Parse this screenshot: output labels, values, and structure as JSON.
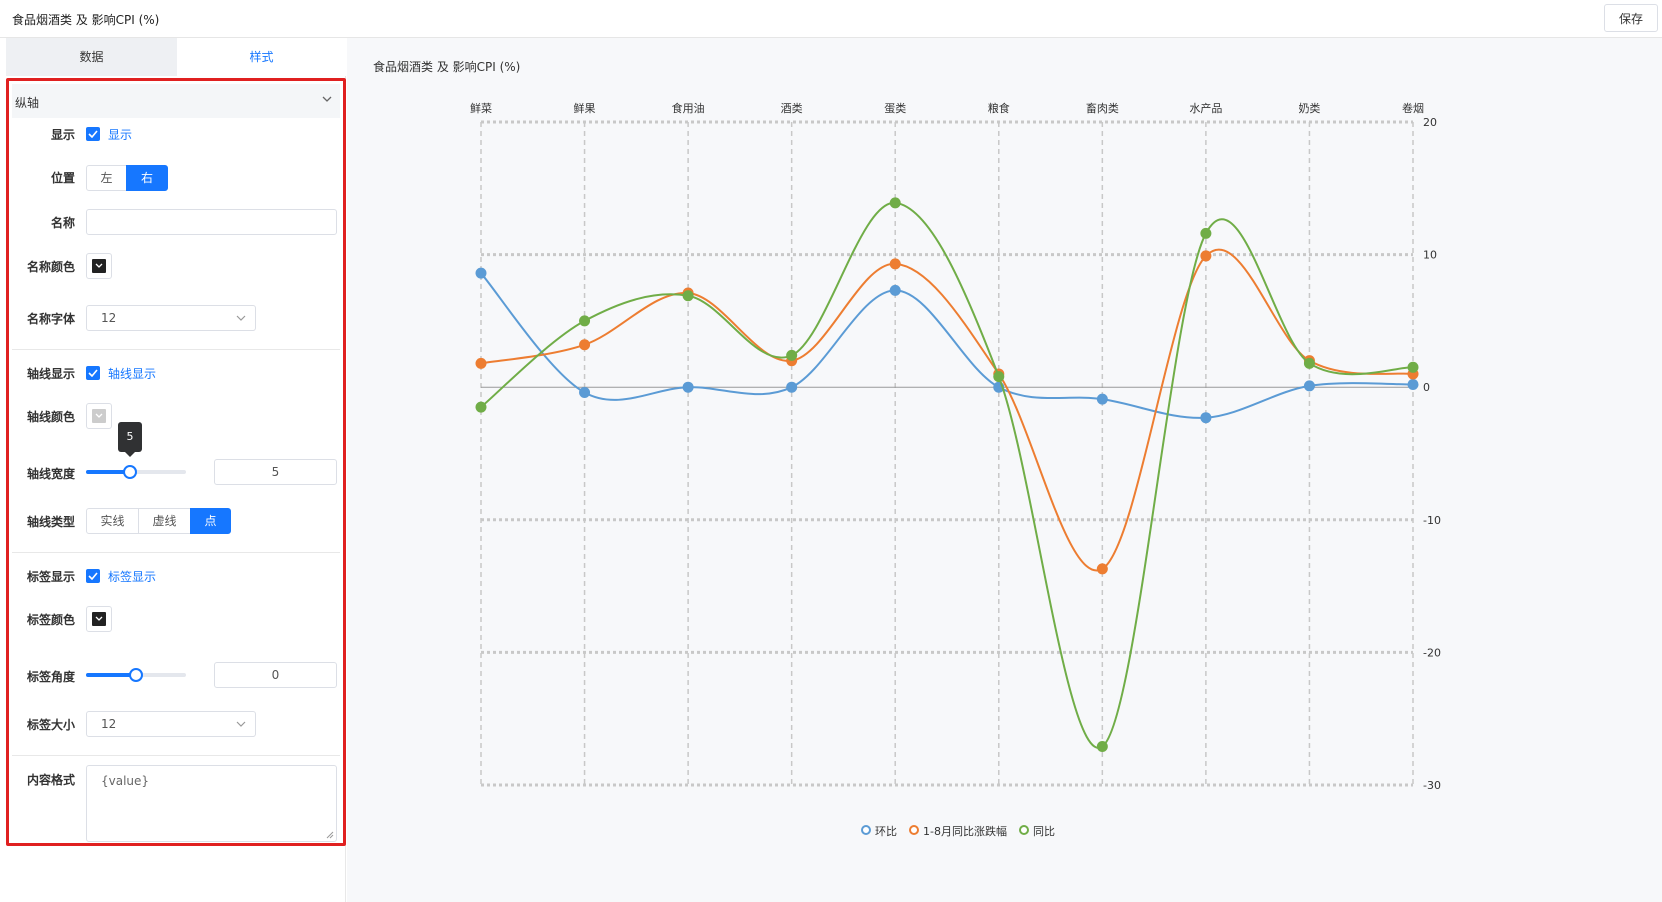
{
  "page": {
    "title": "食品烟酒类 及 影响CPI (%)",
    "save_label": "保存"
  },
  "tabs": [
    {
      "label": "数据"
    },
    {
      "label": "样式"
    }
  ],
  "section": {
    "title": "纵轴",
    "show": {
      "label": "显示",
      "checkbox_text": "显示",
      "checked": true
    },
    "position": {
      "label": "位置",
      "options": [
        "左",
        "右"
      ],
      "selected": "右"
    },
    "name": {
      "label": "名称",
      "value": ""
    },
    "name_color": {
      "label": "名称颜色",
      "color": "#222222"
    },
    "name_font": {
      "label": "名称字体",
      "value": "12"
    },
    "axis_show": {
      "label": "轴线显示",
      "checkbox_text": "轴线显示",
      "checked": true
    },
    "axis_color": {
      "label": "轴线颜色",
      "color": "#cccccc"
    },
    "axis_width": {
      "label": "轴线宽度",
      "value": "5",
      "tooltip": "5",
      "fraction": 0.45
    },
    "axis_type": {
      "label": "轴线类型",
      "options": [
        "实线",
        "虚线",
        "点"
      ],
      "selected": "点"
    },
    "label_show": {
      "label": "标签显示",
      "checkbox_text": "标签显示",
      "checked": true
    },
    "label_color": {
      "label": "标签颜色",
      "color": "#222222"
    },
    "label_angle": {
      "label": "标签角度",
      "value": "0",
      "fraction": 0.5
    },
    "label_size": {
      "label": "标签大小",
      "value": "12"
    },
    "content_format": {
      "label": "内容格式",
      "value": "{value}"
    }
  },
  "chart_data": {
    "type": "line",
    "title": "食品烟酒类 及 影响CPI (%)",
    "categories": [
      "鲜菜",
      "鲜果",
      "食用油",
      "酒类",
      "蛋类",
      "粮食",
      "畜肉类",
      "水产品",
      "奶类",
      "卷烟"
    ],
    "series": [
      {
        "name": "环比",
        "color": "#5b9bd5",
        "values": [
          8.6,
          -0.4,
          0.0,
          0.0,
          7.3,
          0.0,
          -0.9,
          -2.3,
          0.1,
          0.2
        ]
      },
      {
        "name": "1-8月同比涨跌幅",
        "color": "#ed7d31",
        "values": [
          1.8,
          3.2,
          7.1,
          2.0,
          9.3,
          1.0,
          -13.7,
          9.9,
          2.0,
          1.0
        ]
      },
      {
        "name": "同比",
        "color": "#70ad47",
        "values": [
          -1.5,
          5.0,
          6.9,
          2.4,
          13.9,
          0.8,
          -27.1,
          11.6,
          1.8,
          1.5
        ]
      }
    ],
    "ylim": [
      -30,
      20
    ],
    "yticks": [
      20,
      10,
      0,
      -10,
      -20,
      -30
    ],
    "y_axis_position": "right",
    "x_axis_position": "top",
    "grid": true,
    "grid_style": "dotted",
    "legend_position": "bottom"
  }
}
